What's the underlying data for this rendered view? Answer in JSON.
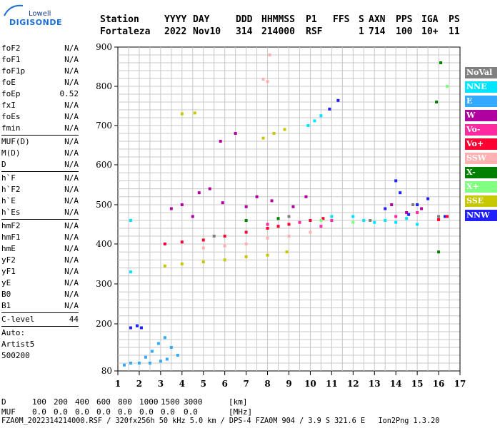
{
  "logo": {
    "top": "Lowell",
    "bottom": "DIGISONDE"
  },
  "header": {
    "labels": [
      "Station",
      "YYYY",
      "DAY",
      "DDD",
      "HHMMSS",
      "P1",
      "FFS",
      "S",
      "AXN",
      "PPS",
      "IGA",
      "PS"
    ],
    "values": [
      "Fortaleza",
      "2022",
      "Nov10",
      "314",
      "214000",
      "RSF",
      "",
      "1",
      "714",
      "100",
      "10+",
      "11"
    ]
  },
  "params": {
    "group1": [
      {
        "name": "foF2",
        "value": "N/A"
      },
      {
        "name": "foF1",
        "value": "N/A"
      },
      {
        "name": "foF1p",
        "value": "N/A"
      },
      {
        "name": "foE",
        "value": "N/A"
      },
      {
        "name": "foEp",
        "value": "0.52"
      },
      {
        "name": "fxI",
        "value": "N/A"
      },
      {
        "name": "foEs",
        "value": "N/A"
      },
      {
        "name": "fmin",
        "value": "N/A"
      }
    ],
    "group2": [
      {
        "name": "MUF(D)",
        "value": "N/A"
      },
      {
        "name": "M(D)",
        "value": "N/A"
      },
      {
        "name": "D",
        "value": "N/A"
      }
    ],
    "group3": [
      {
        "name": "h`F",
        "value": "N/A"
      },
      {
        "name": "h`F2",
        "value": "N/A"
      },
      {
        "name": "h`E",
        "value": "N/A"
      },
      {
        "name": "h`Es",
        "value": "N/A"
      }
    ],
    "group4": [
      {
        "name": "hmF2",
        "value": "N/A"
      },
      {
        "name": "hmF1",
        "value": "N/A"
      },
      {
        "name": "hmE",
        "value": "N/A"
      },
      {
        "name": "yF2",
        "value": "N/A"
      },
      {
        "name": "yF1",
        "value": "N/A"
      },
      {
        "name": "yE",
        "value": "N/A"
      },
      {
        "name": "B0",
        "value": "N/A"
      },
      {
        "name": "B1",
        "value": "N/A"
      }
    ],
    "group5": [
      {
        "name": "C-level",
        "value": "44"
      }
    ]
  },
  "auto": {
    "line1": "Auto:",
    "line2": "Artist5",
    "line3": "500200"
  },
  "bottom": {
    "d_label": "D",
    "d_values": [
      "100",
      "200",
      "400",
      "600",
      "800",
      "1000",
      "1500",
      "3000"
    ],
    "d_unit": "[km]",
    "muf_label": "MUF",
    "muf_values": [
      "0.0",
      "0.0",
      "0.0",
      "0.0",
      "0.0",
      "0.0",
      "0.0",
      "0.0"
    ],
    "muf_unit": "[MHz]",
    "footer": "FZA0M_2022314214000.RSF / 320fx256h 50 kHz 5.0 km / DPS-4 FZA0M 904 / 3.9 S 321.6 E   Ion2Png 1.3.20"
  },
  "legend": [
    {
      "label": "NoVal",
      "color": "#808080"
    },
    {
      "label": "NNE",
      "color": "#00e5ff"
    },
    {
      "label": "E",
      "color": "#33aaff"
    },
    {
      "label": "W",
      "color": "#b000a0"
    },
    {
      "label": "Vo-",
      "color": "#ff2aa0"
    },
    {
      "label": "Vo+",
      "color": "#ff0030"
    },
    {
      "label": "SSW",
      "color": "#ffb0b0"
    },
    {
      "label": "X-",
      "color": "#008000"
    },
    {
      "label": "X+",
      "color": "#80ff80"
    },
    {
      "label": "SSE",
      "color": "#c8c800"
    },
    {
      "label": "NNW",
      "color": "#2020ff"
    }
  ],
  "chart_data": {
    "type": "scatter",
    "x_ticks": [
      "1",
      "2",
      "3",
      "4",
      "5",
      "6",
      "7",
      "8",
      "9",
      "10",
      "11",
      "12",
      "13",
      "14",
      "15",
      "16",
      "17"
    ],
    "y_ticks": [
      "80",
      "200",
      "300",
      "400",
      "500",
      "600",
      "700",
      "800",
      "900"
    ],
    "xlim": [
      1,
      17
    ],
    "ylim": [
      80,
      900
    ],
    "grid": true,
    "series": [
      {
        "name": "E",
        "color": "#33aaff",
        "points": [
          [
            1.3,
            95
          ],
          [
            1.6,
            100
          ],
          [
            2.0,
            100
          ],
          [
            2.3,
            115
          ],
          [
            2.6,
            130
          ],
          [
            2.9,
            150
          ],
          [
            3.2,
            165
          ],
          [
            3.5,
            140
          ],
          [
            3.8,
            120
          ],
          [
            2.5,
            100
          ],
          [
            3.0,
            105
          ],
          [
            3.3,
            110
          ]
        ]
      },
      {
        "name": "NNW",
        "color": "#2020ff",
        "points": [
          [
            1.6,
            190
          ],
          [
            1.9,
            195
          ],
          [
            2.1,
            190
          ],
          [
            10.9,
            742
          ],
          [
            11.3,
            764
          ],
          [
            13.5,
            490
          ],
          [
            14.2,
            530
          ],
          [
            14.6,
            475
          ],
          [
            15.0,
            500
          ],
          [
            15.5,
            515
          ],
          [
            16.3,
            470
          ],
          [
            14.0,
            560
          ]
        ]
      },
      {
        "name": "W",
        "color": "#b000a0",
        "points": [
          [
            4.0,
            500
          ],
          [
            4.8,
            530
          ],
          [
            5.3,
            540
          ],
          [
            5.9,
            505
          ],
          [
            3.5,
            490
          ],
          [
            4.5,
            470
          ],
          [
            7.0,
            495
          ],
          [
            7.5,
            520
          ],
          [
            8.2,
            510
          ],
          [
            9.2,
            495
          ],
          [
            9.8,
            520
          ],
          [
            13.8,
            500
          ],
          [
            14.5,
            480
          ],
          [
            15.2,
            490
          ],
          [
            6.5,
            680
          ],
          [
            5.8,
            660
          ]
        ]
      },
      {
        "name": "Vo+",
        "color": "#ff0030",
        "points": [
          [
            3.2,
            400
          ],
          [
            4.0,
            405
          ],
          [
            5.0,
            410
          ],
          [
            6.0,
            420
          ],
          [
            7.0,
            430
          ],
          [
            8.0,
            440
          ],
          [
            8.5,
            445
          ],
          [
            9.0,
            450
          ],
          [
            10.0,
            460
          ],
          [
            10.6,
            465
          ],
          [
            16.0,
            462
          ],
          [
            16.4,
            470
          ]
        ]
      },
      {
        "name": "SSW",
        "color": "#ffb0b0",
        "points": [
          [
            5.0,
            390
          ],
          [
            6.0,
            395
          ],
          [
            7.0,
            400
          ],
          [
            8.0,
            415
          ],
          [
            9.0,
            420
          ],
          [
            10.0,
            430
          ],
          [
            8.0,
            812
          ],
          [
            7.8,
            818
          ],
          [
            8.1,
            880
          ]
        ]
      },
      {
        "name": "SSE",
        "color": "#c8c800",
        "points": [
          [
            3.2,
            345
          ],
          [
            4.0,
            350
          ],
          [
            5.0,
            355
          ],
          [
            6.0,
            360
          ],
          [
            7.0,
            368
          ],
          [
            8.0,
            372
          ],
          [
            8.9,
            380
          ],
          [
            7.8,
            668
          ],
          [
            8.3,
            680
          ],
          [
            8.8,
            690
          ],
          [
            4.0,
            730
          ],
          [
            4.6,
            732
          ]
        ]
      },
      {
        "name": "NNE",
        "color": "#00e5ff",
        "points": [
          [
            9.9,
            700
          ],
          [
            10.2,
            712
          ],
          [
            10.5,
            725
          ],
          [
            11.0,
            470
          ],
          [
            12.0,
            470
          ],
          [
            12.5,
            460
          ],
          [
            13.0,
            455
          ],
          [
            13.5,
            460
          ],
          [
            14.0,
            455
          ],
          [
            14.5,
            465
          ],
          [
            15.0,
            450
          ],
          [
            1.6,
            460
          ],
          [
            1.6,
            330
          ]
        ]
      },
      {
        "name": "X-",
        "color": "#008000",
        "points": [
          [
            7.0,
            460
          ],
          [
            8.5,
            465
          ],
          [
            16.0,
            380
          ],
          [
            16.1,
            860
          ],
          [
            15.9,
            760
          ]
        ]
      },
      {
        "name": "X+",
        "color": "#80ff80",
        "points": [
          [
            10.5,
            460
          ],
          [
            12.0,
            455
          ],
          [
            16.4,
            800
          ]
        ]
      },
      {
        "name": "Vo-",
        "color": "#ff2aa0",
        "points": [
          [
            8.0,
            450
          ],
          [
            9.5,
            455
          ],
          [
            10.5,
            445
          ],
          [
            11.0,
            460
          ],
          [
            14.0,
            470
          ],
          [
            15.0,
            480
          ]
        ]
      },
      {
        "name": "NoVal",
        "color": "#808080",
        "points": [
          [
            5.5,
            420
          ],
          [
            9.0,
            470
          ],
          [
            12.8,
            460
          ],
          [
            16.0,
            470
          ],
          [
            14.8,
            500
          ]
        ]
      }
    ]
  }
}
